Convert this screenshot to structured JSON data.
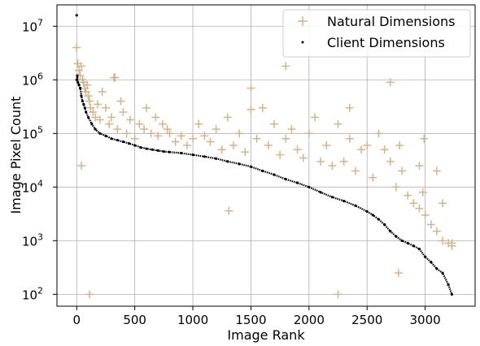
{
  "chart_data": {
    "type": "scatter",
    "xlabel": "Image Rank",
    "ylabel": "Image Pixel Count",
    "xlim": [
      -170,
      3430
    ],
    "ylim": [
      60,
      25000000
    ],
    "y_scale": "log",
    "grid": true,
    "legend_position": "top-right",
    "x_ticks": [
      {
        "value": 0,
        "label": "0"
      },
      {
        "value": 500,
        "label": "500"
      },
      {
        "value": 1000,
        "label": "1000"
      },
      {
        "value": 1500,
        "label": "1500"
      },
      {
        "value": 2000,
        "label": "2000"
      },
      {
        "value": 2500,
        "label": "2500"
      },
      {
        "value": 3000,
        "label": "3000"
      }
    ],
    "y_ticks": [
      {
        "value": 100,
        "base": "10",
        "exp": "2"
      },
      {
        "value": 1000,
        "base": "10",
        "exp": "3"
      },
      {
        "value": 10000,
        "base": "10",
        "exp": "4"
      },
      {
        "value": 100000,
        "base": "10",
        "exp": "5"
      },
      {
        "value": 1000000,
        "base": "10",
        "exp": "6"
      },
      {
        "value": 10000000,
        "base": "10",
        "exp": "7"
      }
    ],
    "series": [
      {
        "name": "Natural Dimensions",
        "color": "#d2b48c",
        "marker": "plus",
        "x": [
          0,
          10,
          20,
          30,
          40,
          50,
          60,
          70,
          80,
          90,
          100,
          110,
          120,
          140,
          160,
          180,
          200,
          220,
          250,
          280,
          300,
          330,
          350,
          380,
          400,
          430,
          460,
          500,
          540,
          580,
          600,
          640,
          680,
          700,
          740,
          780,
          800,
          850,
          900,
          950,
          1000,
          1050,
          1100,
          1150,
          1200,
          1250,
          1300,
          1350,
          1400,
          1450,
          1500,
          1550,
          1600,
          1650,
          1700,
          1750,
          1800,
          1850,
          1900,
          1950,
          2000,
          2050,
          2100,
          2150,
          2200,
          2250,
          2300,
          2350,
          2400,
          2450,
          2500,
          2550,
          2600,
          2650,
          2700,
          2750,
          2800,
          2850,
          2900,
          2950,
          3000,
          3050,
          3100,
          3150,
          3200,
          3230,
          40,
          110,
          320,
          1310,
          1500,
          1800,
          2250,
          2700,
          2990,
          3230,
          2770,
          2780,
          2980,
          3100,
          3150,
          2350,
          2950
        ],
        "y": [
          4000000,
          2000000,
          1500000,
          1200000,
          1800000,
          1000000,
          900000,
          700000,
          600000,
          800000,
          500000,
          400000,
          300000,
          250000,
          200000,
          350000,
          180000,
          600000,
          300000,
          150000,
          200000,
          1100000,
          120000,
          400000,
          250000,
          100000,
          180000,
          80000,
          150000,
          120000,
          300000,
          100000,
          200000,
          90000,
          150000,
          120000,
          100000,
          70000,
          90000,
          60000,
          80000,
          150000,
          90000,
          70000,
          120000,
          50000,
          200000,
          60000,
          100000,
          45000,
          700000,
          80000,
          300000,
          60000,
          150000,
          40000,
          80000,
          120000,
          50000,
          35000,
          100000,
          200000,
          30000,
          60000,
          25000,
          150000,
          30000,
          80000,
          20000,
          50000,
          60000,
          15000,
          100000,
          50000,
          30000,
          10000,
          20000,
          7000,
          5000,
          4000,
          3000,
          2000,
          1500,
          1000,
          900,
          800,
          25000,
          100,
          1100000,
          3600,
          280000,
          1800000,
          100,
          900000,
          80000,
          900,
          250,
          60000,
          8000,
          20000,
          5000,
          300000,
          25000
        ]
      },
      {
        "name": "Client Dimensions",
        "color": "#000000",
        "marker": "dot",
        "x": [
          0,
          10,
          20,
          30,
          40,
          50,
          60,
          70,
          80,
          100,
          130,
          160,
          200,
          250,
          300,
          350,
          400,
          450,
          500,
          550,
          600,
          650,
          700,
          750,
          800,
          900,
          1000,
          1100,
          1200,
          1300,
          1400,
          1500,
          1600,
          1700,
          1800,
          1900,
          2000,
          2100,
          2200,
          2300,
          2400,
          2500,
          2550,
          2600,
          2650,
          2700,
          2750,
          2800,
          2850,
          2900,
          2950,
          3000,
          3050,
          3100,
          3150,
          3200,
          3230,
          0,
          5
        ],
        "y": [
          1000000,
          900000,
          800000,
          700000,
          500000,
          400000,
          350000,
          300000,
          250000,
          200000,
          150000,
          120000,
          100000,
          90000,
          80000,
          75000,
          70000,
          65000,
          60000,
          55000,
          52000,
          50000,
          48000,
          46000,
          45000,
          43000,
          40000,
          37000,
          34000,
          30000,
          27000,
          24000,
          20000,
          17000,
          14000,
          12000,
          10000,
          8000,
          6500,
          5500,
          4500,
          3500,
          3000,
          2500,
          2000,
          1500,
          1200,
          1000,
          900,
          800,
          700,
          500,
          400,
          300,
          250,
          150,
          100,
          16000000,
          1200000
        ]
      }
    ]
  }
}
